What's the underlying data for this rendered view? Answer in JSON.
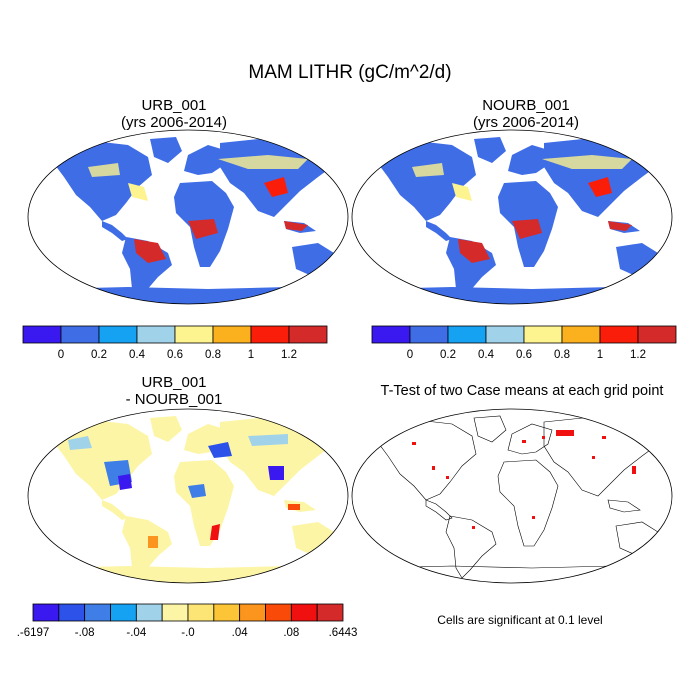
{
  "main_title": "MAM LITHR (gC/m^2/d)",
  "panels": [
    {
      "id": "urb",
      "title_line1": "URB_001",
      "title_line2": "(yrs 2006-2014)"
    },
    {
      "id": "nourb",
      "title_line1": "NOURB_001",
      "title_line2": "(yrs 2006-2014)"
    },
    {
      "id": "diff",
      "title_line1": "URB_001",
      "title_line2": "- NOURB_001"
    },
    {
      "id": "ttest",
      "title_line1": "T-Test of two Case means at each grid point",
      "title_line2": ""
    }
  ],
  "colorbar_abs": {
    "colors": [
      "#3a18f0",
      "#3f6de6",
      "#16a2f2",
      "#a0d2ea",
      "#fdf38f",
      "#fbb01e",
      "#fa1e0a",
      "#d42a2a"
    ],
    "labels": [
      "0",
      "0.2",
      "0.4",
      "0.6",
      "0.8",
      "1",
      "1.2"
    ]
  },
  "colorbar_diff": {
    "colors": [
      "#3a18f0",
      "#2c52e9",
      "#3f7ee6",
      "#16a2f2",
      "#a0d2ea",
      "#fdf5a6",
      "#fce575",
      "#fbc537",
      "#fb951e",
      "#fa4a0a",
      "#f01010",
      "#d42a2a"
    ],
    "labels": [
      ".-6197",
      "-.08",
      "-.04",
      "-.0",
      ".04",
      ".08",
      ".6443"
    ]
  },
  "ttest_note": "Cells are significant at 0.1 level"
}
